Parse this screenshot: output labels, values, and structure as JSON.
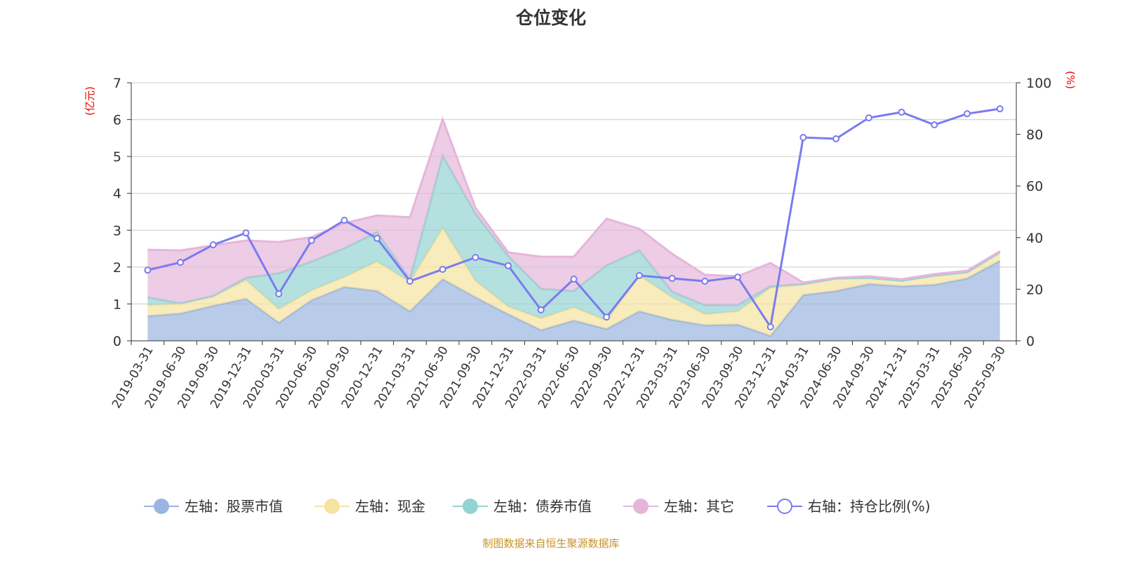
{
  "chart_data": {
    "type": "area",
    "title": "仓位变化",
    "source_note": "制图数据来自恒生聚源数据库",
    "left_axis_label": "(亿元)",
    "right_axis_label": "(%)",
    "ylim_left": [
      0,
      7
    ],
    "yticks_left": [
      0,
      1,
      2,
      3,
      4,
      5,
      6,
      7
    ],
    "ylim_right": [
      0,
      100
    ],
    "yticks_right": [
      0,
      20,
      40,
      60,
      80,
      100
    ],
    "grid": true,
    "legend_position": "bottom",
    "categories": [
      "2019-03-31",
      "2019-06-30",
      "2019-09-30",
      "2019-12-31",
      "2020-03-31",
      "2020-06-30",
      "2020-09-30",
      "2020-12-31",
      "2021-03-31",
      "2021-06-30",
      "2021-09-30",
      "2021-12-31",
      "2022-03-31",
      "2022-06-30",
      "2022-09-30",
      "2022-12-31",
      "2023-03-31",
      "2023-06-30",
      "2023-09-30",
      "2023-12-31",
      "2024-03-31",
      "2024-06-30",
      "2024-09-30",
      "2024-12-31",
      "2025-03-31",
      "2025-06-30",
      "2025-09-30"
    ],
    "series": [
      {
        "name": "左轴：股票市值",
        "axis": "left",
        "stacked": true,
        "color": "#9ab5e0",
        "values": [
          0.67,
          0.74,
          0.95,
          1.14,
          0.49,
          1.1,
          1.46,
          1.35,
          0.8,
          1.67,
          1.18,
          0.72,
          0.29,
          0.55,
          0.32,
          0.8,
          0.57,
          0.42,
          0.44,
          0.13,
          1.24,
          1.35,
          1.54,
          1.48,
          1.52,
          1.69,
          2.17
        ]
      },
      {
        "name": "左轴：现金",
        "axis": "left",
        "stacked": true,
        "color": "#f5e3a0",
        "values": [
          0.3,
          0.26,
          0.25,
          0.51,
          0.37,
          0.27,
          0.27,
          0.8,
          0.8,
          1.39,
          0.45,
          0.21,
          0.32,
          0.36,
          0.23,
          0.97,
          0.61,
          0.3,
          0.36,
          1.31,
          0.3,
          0.34,
          0.17,
          0.15,
          0.25,
          0.17,
          0.23
        ]
      },
      {
        "name": "左轴：债券市值",
        "axis": "left",
        "stacked": true,
        "color": "#94d3d3",
        "values": [
          0.21,
          0.02,
          0.02,
          0.06,
          0.97,
          0.78,
          0.78,
          0.8,
          0.07,
          1.96,
          1.82,
          1.37,
          0.8,
          0.44,
          1.5,
          0.68,
          0.15,
          0.25,
          0.17,
          0.04,
          0,
          0,
          0,
          0,
          0,
          0,
          0
        ]
      },
      {
        "name": "左轴：其它",
        "axis": "left",
        "stacked": true,
        "color": "#e5b6da",
        "values": [
          1.29,
          1.43,
          1.37,
          1.01,
          0.85,
          0.66,
          0.68,
          0.45,
          1.68,
          0.99,
          0.16,
          0.1,
          0.87,
          0.93,
          1.26,
          0.59,
          1.03,
          0.82,
          0.78,
          0.63,
          0.04,
          0.02,
          0.04,
          0.04,
          0.04,
          0.04,
          0.03
        ]
      },
      {
        "name": "右轴：持仓比例(%)",
        "axis": "right",
        "type": "line",
        "color": "#7b7bf0",
        "values": [
          27.4,
          30.4,
          37.2,
          41.8,
          18.2,
          38.9,
          46.7,
          39.7,
          23.1,
          27.7,
          32.3,
          29.1,
          12.0,
          23.9,
          9.2,
          25.3,
          24.2,
          23.1,
          24.7,
          5.4,
          78.8,
          78.3,
          86.4,
          88.6,
          83.7,
          88.0,
          89.9
        ]
      }
    ]
  }
}
